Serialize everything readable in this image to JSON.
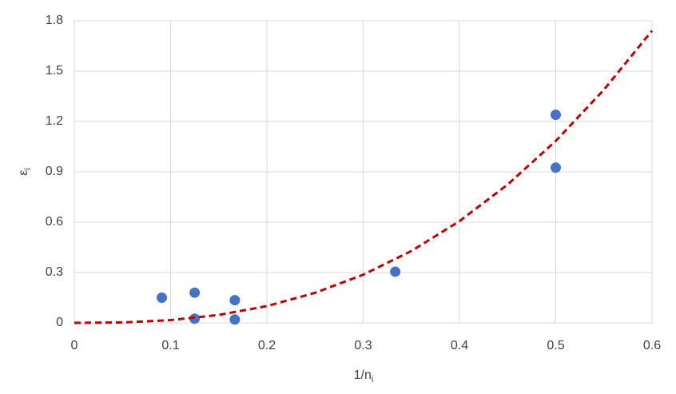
{
  "chart_data": {
    "type": "scatter",
    "x_label": "1/n",
    "x_label_sub": "i",
    "y_label": "ε",
    "y_label_sub": "i",
    "xlim": [
      0,
      0.6
    ],
    "xticks": [
      0,
      0.1,
      0.2,
      0.3,
      0.4,
      0.5,
      0.6
    ],
    "ylim": [
      0,
      1.8
    ],
    "yticks": [
      0,
      0.3,
      0.6,
      0.9,
      1.2,
      1.5,
      1.8
    ],
    "grid": true,
    "series": [
      {
        "kind": "points",
        "color": "#4472c4",
        "x": [
          0.0909,
          0.125,
          0.125,
          0.1667,
          0.1667,
          0.3333,
          0.5,
          0.5
        ],
        "values": [
          0.15,
          0.18,
          0.025,
          0.135,
          0.02,
          0.305,
          1.24,
          0.925
        ]
      },
      {
        "kind": "trendline",
        "color": "#c00000",
        "dashed": true,
        "x": [
          0,
          0.05,
          0.1,
          0.15,
          0.2,
          0.25,
          0.3,
          0.35,
          0.4,
          0.45,
          0.5,
          0.55,
          0.6
        ],
        "values": [
          0,
          0.0027,
          0.0165,
          0.0473,
          0.1,
          0.179,
          0.287,
          0.428,
          0.606,
          0.824,
          1.084,
          1.389,
          1.741
        ]
      }
    ]
  }
}
